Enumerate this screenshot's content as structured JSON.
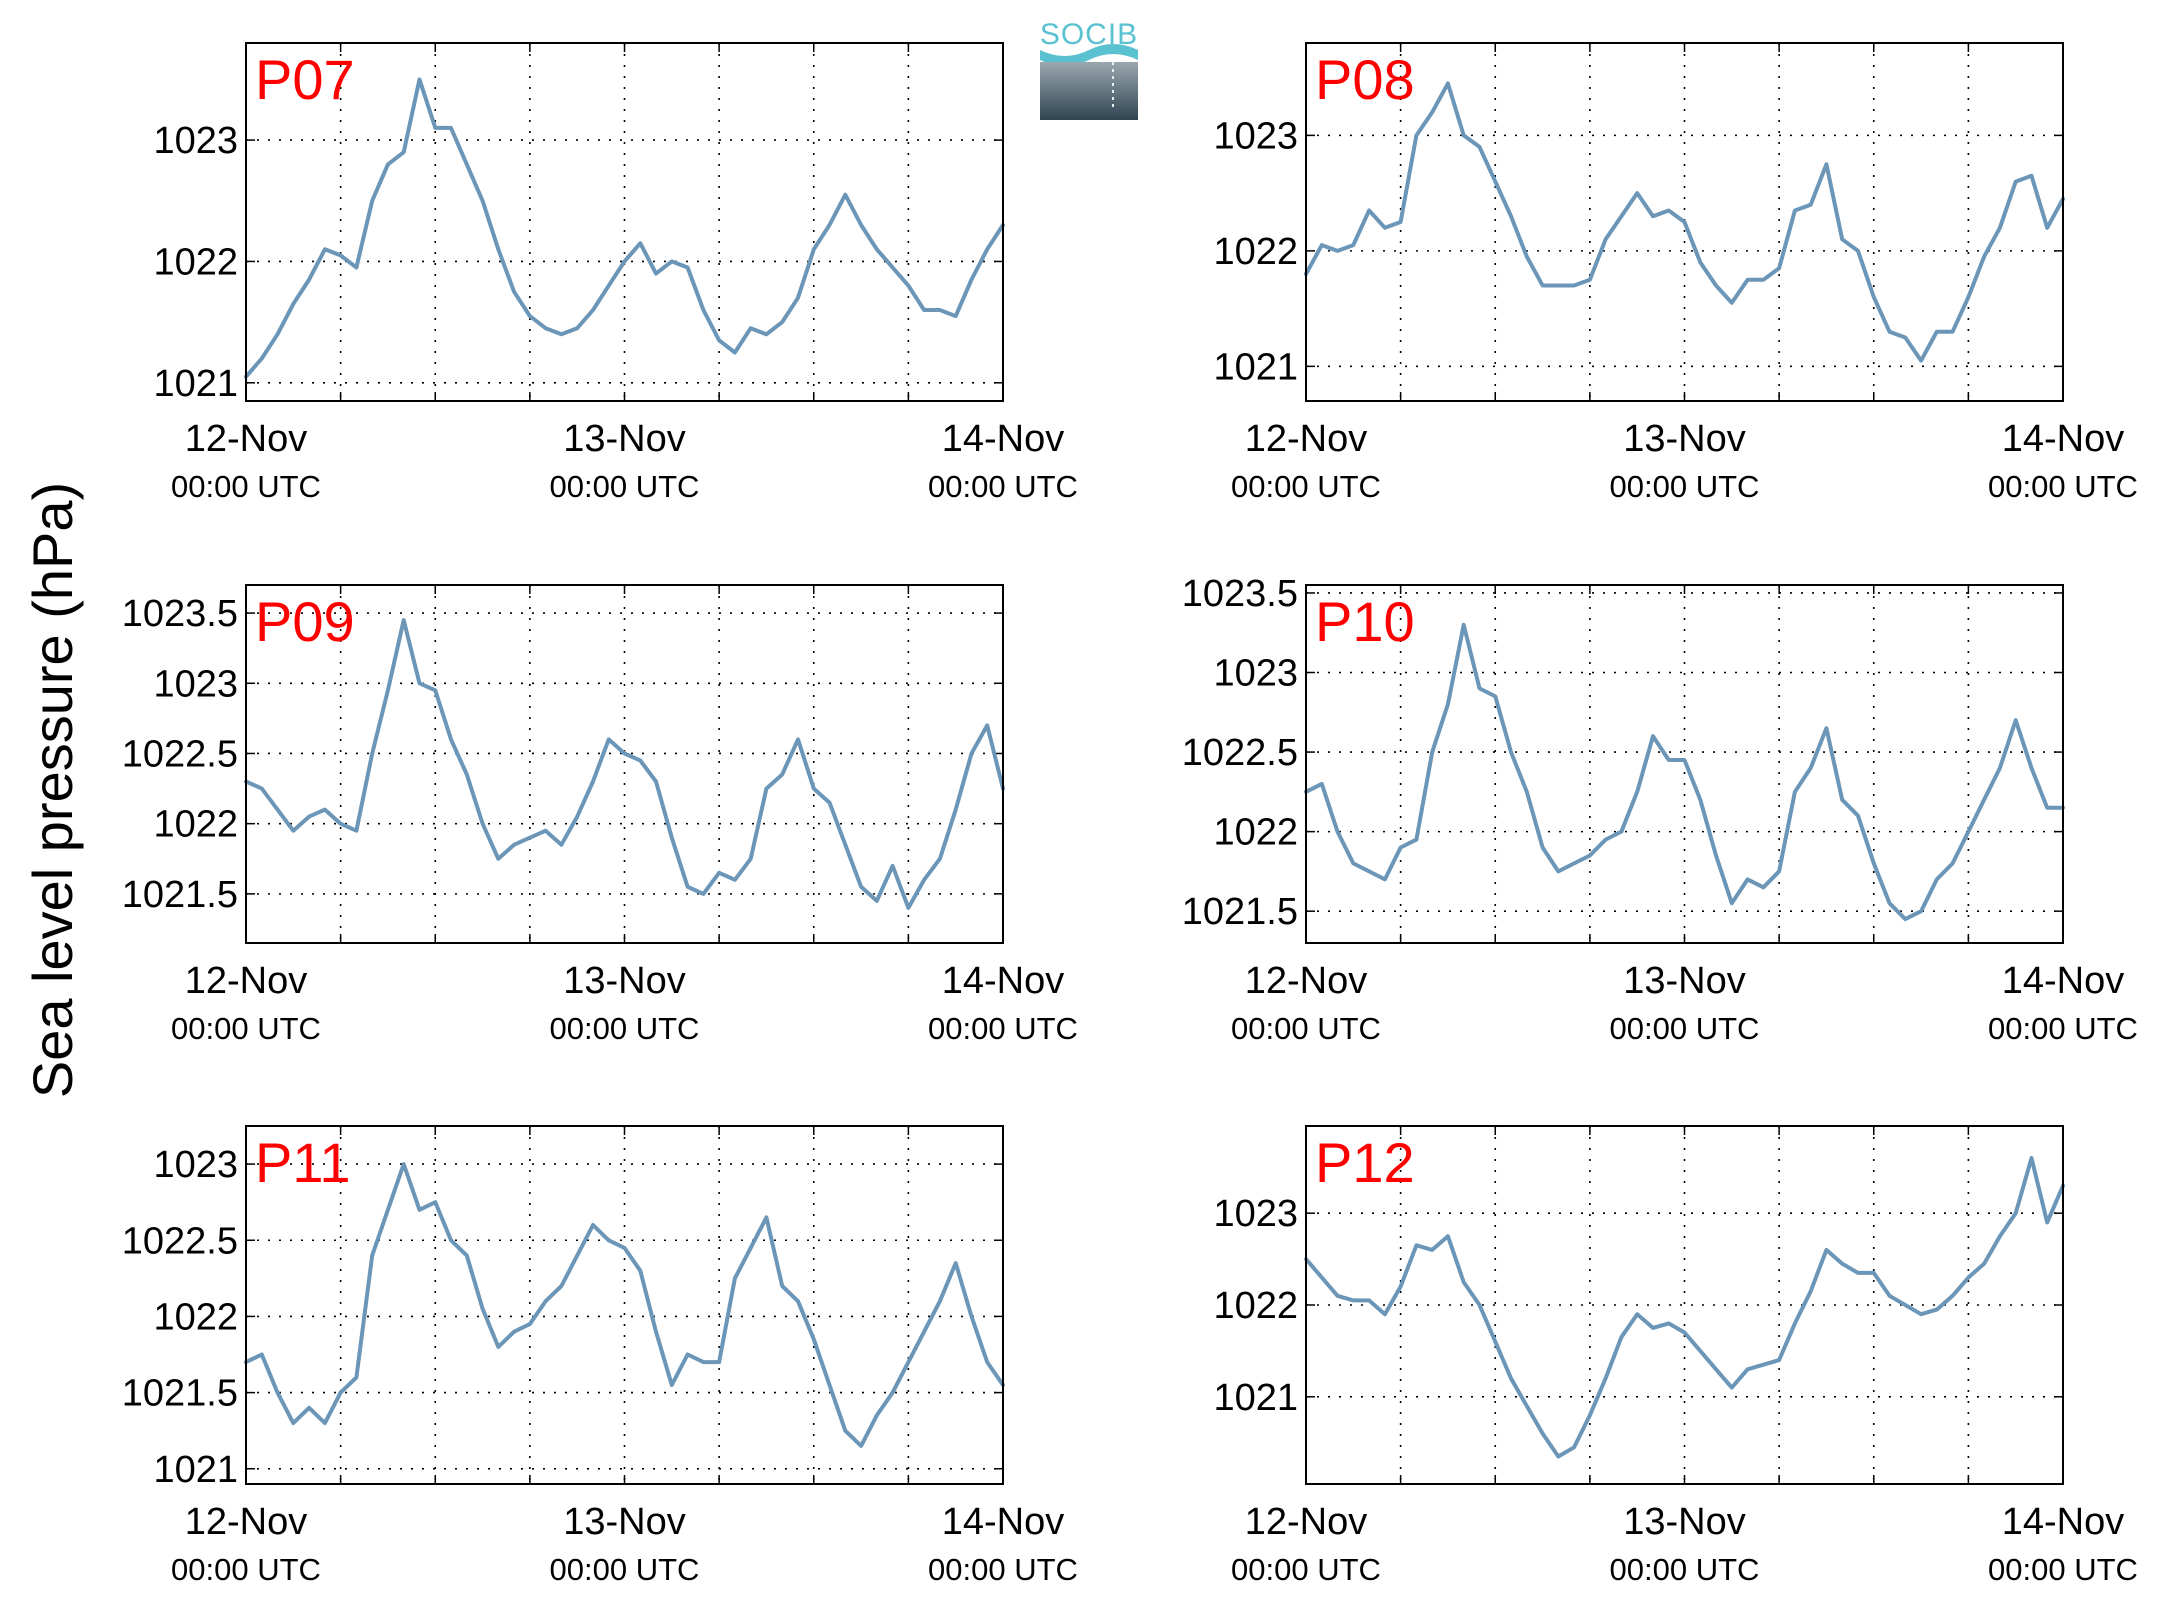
{
  "figure": {
    "ylabel": "Sea level pressure (hPa)",
    "logo_text": "SOCIB",
    "line_color": "#6b96b8",
    "title_color": "#ff0000"
  },
  "chart_data": [
    {
      "type": "line",
      "title": "P07",
      "xlabel": "",
      "ylabel": "Sea level pressure (hPa)",
      "xlim": [
        0,
        48
      ],
      "ylim": [
        1020.85,
        1023.8
      ],
      "yticks": [
        1021,
        1022,
        1023
      ],
      "ytick_labels": [
        "1021",
        "1022",
        "1023"
      ],
      "xticks": [
        0,
        24,
        48
      ],
      "xtick_labels": [
        [
          "12-Nov",
          "00:00 UTC"
        ],
        [
          "13-Nov",
          "00:00 UTC"
        ],
        [
          "14-Nov",
          "00:00 UTC"
        ]
      ],
      "grid": true,
      "series": [
        {
          "x": [
            0,
            1,
            2,
            3,
            4,
            5,
            6,
            7,
            8,
            9,
            10,
            11,
            12,
            13,
            14,
            15,
            16,
            17,
            18,
            19,
            20,
            21,
            22,
            23,
            24,
            25,
            26,
            27,
            28,
            29,
            30,
            31,
            32,
            33,
            34,
            35,
            36,
            37,
            38,
            39,
            40,
            41,
            42,
            43,
            44,
            45,
            46,
            47,
            48
          ],
          "y": [
            1021.05,
            1021.2,
            1021.4,
            1021.65,
            1021.85,
            1022.1,
            1022.05,
            1021.95,
            1022.5,
            1022.8,
            1022.9,
            1023.5,
            1023.1,
            1023.1,
            1022.8,
            1022.5,
            1022.1,
            1021.75,
            1021.55,
            1021.45,
            1021.4,
            1021.45,
            1021.6,
            1021.8,
            1022.0,
            1022.15,
            1021.9,
            1022.0,
            1021.95,
            1021.6,
            1021.35,
            1021.25,
            1021.45,
            1021.4,
            1021.5,
            1021.7,
            1022.1,
            1022.3,
            1022.55,
            1022.3,
            1022.1,
            1021.95,
            1021.8,
            1021.6,
            1021.6,
            1021.55,
            1021.85,
            1022.1,
            1022.3
          ]
        }
      ]
    },
    {
      "type": "line",
      "title": "P08",
      "xlabel": "",
      "ylabel": "",
      "xlim": [
        0,
        48
      ],
      "ylim": [
        1020.7,
        1023.8
      ],
      "yticks": [
        1021,
        1022,
        1023
      ],
      "ytick_labels": [
        "1021",
        "1022",
        "1023"
      ],
      "xticks": [
        0,
        24,
        48
      ],
      "xtick_labels": [
        [
          "12-Nov",
          "00:00 UTC"
        ],
        [
          "13-Nov",
          "00:00 UTC"
        ],
        [
          "14-Nov",
          "00:00 UTC"
        ]
      ],
      "grid": true,
      "series": [
        {
          "x": [
            0,
            1,
            2,
            3,
            4,
            5,
            6,
            7,
            8,
            9,
            10,
            11,
            12,
            13,
            14,
            15,
            16,
            17,
            18,
            19,
            20,
            21,
            22,
            23,
            24,
            25,
            26,
            27,
            28,
            29,
            30,
            31,
            32,
            33,
            34,
            35,
            36,
            37,
            38,
            39,
            40,
            41,
            42,
            43,
            44,
            45,
            46,
            47,
            48
          ],
          "y": [
            1021.8,
            1022.05,
            1022.0,
            1022.05,
            1022.35,
            1022.2,
            1022.25,
            1023.0,
            1023.2,
            1023.45,
            1023.0,
            1022.9,
            1022.6,
            1022.3,
            1021.95,
            1021.7,
            1021.7,
            1021.7,
            1021.75,
            1022.1,
            1022.3,
            1022.5,
            1022.3,
            1022.35,
            1022.25,
            1021.9,
            1021.7,
            1021.55,
            1021.75,
            1021.75,
            1021.85,
            1022.35,
            1022.4,
            1022.75,
            1022.1,
            1022.0,
            1021.6,
            1021.3,
            1021.25,
            1021.05,
            1021.3,
            1021.3,
            1021.6,
            1021.95,
            1022.2,
            1022.6,
            1022.65,
            1022.2,
            1022.45
          ]
        }
      ]
    },
    {
      "type": "line",
      "title": "P09",
      "xlabel": "",
      "ylabel": "",
      "xlim": [
        0,
        48
      ],
      "ylim": [
        1021.15,
        1023.7
      ],
      "yticks": [
        1021.5,
        1022,
        1022.5,
        1023,
        1023.5
      ],
      "ytick_labels": [
        "1021.5",
        "1022",
        "1022.5",
        "1023",
        "1023.5"
      ],
      "xticks": [
        0,
        24,
        48
      ],
      "xtick_labels": [
        [
          "12-Nov",
          "00:00 UTC"
        ],
        [
          "13-Nov",
          "00:00 UTC"
        ],
        [
          "14-Nov",
          "00:00 UTC"
        ]
      ],
      "grid": true,
      "series": [
        {
          "x": [
            0,
            1,
            2,
            3,
            4,
            5,
            6,
            7,
            8,
            9,
            10,
            11,
            12,
            13,
            14,
            15,
            16,
            17,
            18,
            19,
            20,
            21,
            22,
            23,
            24,
            25,
            26,
            27,
            28,
            29,
            30,
            31,
            32,
            33,
            34,
            35,
            36,
            37,
            38,
            39,
            40,
            41,
            42,
            43,
            44,
            45,
            46,
            47,
            48
          ],
          "y": [
            1022.3,
            1022.25,
            1022.1,
            1021.95,
            1022.05,
            1022.1,
            1022.0,
            1021.95,
            1022.5,
            1022.95,
            1023.45,
            1023.0,
            1022.95,
            1022.6,
            1022.35,
            1022.0,
            1021.75,
            1021.85,
            1021.9,
            1021.95,
            1021.85,
            1022.05,
            1022.3,
            1022.6,
            1022.5,
            1022.45,
            1022.3,
            1021.9,
            1021.55,
            1021.5,
            1021.65,
            1021.6,
            1021.75,
            1022.25,
            1022.35,
            1022.6,
            1022.25,
            1022.15,
            1021.85,
            1021.55,
            1021.45,
            1021.7,
            1021.4,
            1021.6,
            1021.75,
            1022.1,
            1022.5,
            1022.7,
            1022.25
          ]
        }
      ]
    },
    {
      "type": "line",
      "title": "P10",
      "xlabel": "",
      "ylabel": "",
      "xlim": [
        0,
        48
      ],
      "ylim": [
        1021.3,
        1023.55
      ],
      "yticks": [
        1021.5,
        1022,
        1022.5,
        1023,
        1023.5
      ],
      "ytick_labels": [
        "1021.5",
        "1022",
        "1022.5",
        "1023",
        "1023.5"
      ],
      "xticks": [
        0,
        24,
        48
      ],
      "xtick_labels": [
        [
          "12-Nov",
          "00:00 UTC"
        ],
        [
          "13-Nov",
          "00:00 UTC"
        ],
        [
          "14-Nov",
          "00:00 UTC"
        ]
      ],
      "grid": true,
      "series": [
        {
          "x": [
            0,
            1,
            2,
            3,
            4,
            5,
            6,
            7,
            8,
            9,
            10,
            11,
            12,
            13,
            14,
            15,
            16,
            17,
            18,
            19,
            20,
            21,
            22,
            23,
            24,
            25,
            26,
            27,
            28,
            29,
            30,
            31,
            32,
            33,
            34,
            35,
            36,
            37,
            38,
            39,
            40,
            41,
            42,
            43,
            44,
            45,
            46,
            47,
            48
          ],
          "y": [
            1022.25,
            1022.3,
            1022.0,
            1021.8,
            1021.75,
            1021.7,
            1021.9,
            1021.95,
            1022.5,
            1022.8,
            1023.3,
            1022.9,
            1022.85,
            1022.5,
            1022.25,
            1021.9,
            1021.75,
            1021.8,
            1021.85,
            1021.95,
            1022.0,
            1022.25,
            1022.6,
            1022.45,
            1022.45,
            1022.2,
            1021.85,
            1021.55,
            1021.7,
            1021.65,
            1021.75,
            1022.25,
            1022.4,
            1022.65,
            1022.2,
            1022.1,
            1021.8,
            1021.55,
            1021.45,
            1021.5,
            1021.7,
            1021.8,
            1022.0,
            1022.2,
            1022.4,
            1022.7,
            1022.4,
            1022.15,
            1022.15
          ]
        }
      ]
    },
    {
      "type": "line",
      "title": "P11",
      "xlabel": "",
      "ylabel": "",
      "xlim": [
        0,
        48
      ],
      "ylim": [
        1020.9,
        1023.25
      ],
      "yticks": [
        1021,
        1021.5,
        1022,
        1022.5,
        1023
      ],
      "ytick_labels": [
        "1021",
        "1021.5",
        "1022",
        "1022.5",
        "1023"
      ],
      "xticks": [
        0,
        24,
        48
      ],
      "xtick_labels": [
        [
          "12-Nov",
          "00:00 UTC"
        ],
        [
          "13-Nov",
          "00:00 UTC"
        ],
        [
          "14-Nov",
          "00:00 UTC"
        ]
      ],
      "grid": true,
      "series": [
        {
          "x": [
            0,
            1,
            2,
            3,
            4,
            5,
            6,
            7,
            8,
            9,
            10,
            11,
            12,
            13,
            14,
            15,
            16,
            17,
            18,
            19,
            20,
            21,
            22,
            23,
            24,
            25,
            26,
            27,
            28,
            29,
            30,
            31,
            32,
            33,
            34,
            35,
            36,
            37,
            38,
            39,
            40,
            41,
            42,
            43,
            44,
            45,
            46,
            47,
            48
          ],
          "y": [
            1021.7,
            1021.75,
            1021.5,
            1021.3,
            1021.4,
            1021.3,
            1021.5,
            1021.6,
            1022.4,
            1022.7,
            1023.0,
            1022.7,
            1022.75,
            1022.5,
            1022.4,
            1022.05,
            1021.8,
            1021.9,
            1021.95,
            1022.1,
            1022.2,
            1022.4,
            1022.6,
            1022.5,
            1022.45,
            1022.3,
            1021.9,
            1021.55,
            1021.75,
            1021.7,
            1021.7,
            1022.25,
            1022.45,
            1022.65,
            1022.2,
            1022.1,
            1021.85,
            1021.55,
            1021.25,
            1021.15,
            1021.35,
            1021.5,
            1021.7,
            1021.9,
            1022.1,
            1022.35,
            1022.0,
            1021.7,
            1021.55
          ]
        }
      ]
    },
    {
      "type": "line",
      "title": "P12",
      "xlabel": "",
      "ylabel": "",
      "xlim": [
        0,
        48
      ],
      "ylim": [
        1020.05,
        1023.95
      ],
      "yticks": [
        1021,
        1022,
        1023
      ],
      "ytick_labels": [
        "1021",
        "1022",
        "1023"
      ],
      "xticks": [
        0,
        24,
        48
      ],
      "xtick_labels": [
        [
          "12-Nov",
          "00:00 UTC"
        ],
        [
          "13-Nov",
          "00:00 UTC"
        ],
        [
          "14-Nov",
          "00:00 UTC"
        ]
      ],
      "grid": true,
      "series": [
        {
          "x": [
            0,
            1,
            2,
            3,
            4,
            5,
            6,
            7,
            8,
            9,
            10,
            11,
            12,
            13,
            14,
            15,
            16,
            17,
            18,
            19,
            20,
            21,
            22,
            23,
            24,
            25,
            26,
            27,
            28,
            29,
            30,
            31,
            32,
            33,
            34,
            35,
            36,
            37,
            38,
            39,
            40,
            41,
            42,
            43,
            44,
            45,
            46,
            47,
            48
          ],
          "y": [
            1022.5,
            1022.3,
            1022.1,
            1022.05,
            1022.05,
            1021.9,
            1022.2,
            1022.65,
            1022.6,
            1022.75,
            1022.25,
            1022.0,
            1021.6,
            1021.2,
            1020.9,
            1020.6,
            1020.35,
            1020.45,
            1020.8,
            1021.2,
            1021.65,
            1021.9,
            1021.75,
            1021.8,
            1021.7,
            1021.5,
            1021.3,
            1021.1,
            1021.3,
            1021.35,
            1021.4,
            1021.8,
            1022.15,
            1022.6,
            1022.45,
            1022.35,
            1022.35,
            1022.1,
            1022.0,
            1021.9,
            1021.95,
            1022.1,
            1022.3,
            1022.45,
            1022.75,
            1023.0,
            1023.6,
            1022.9,
            1023.3
          ]
        }
      ]
    }
  ]
}
